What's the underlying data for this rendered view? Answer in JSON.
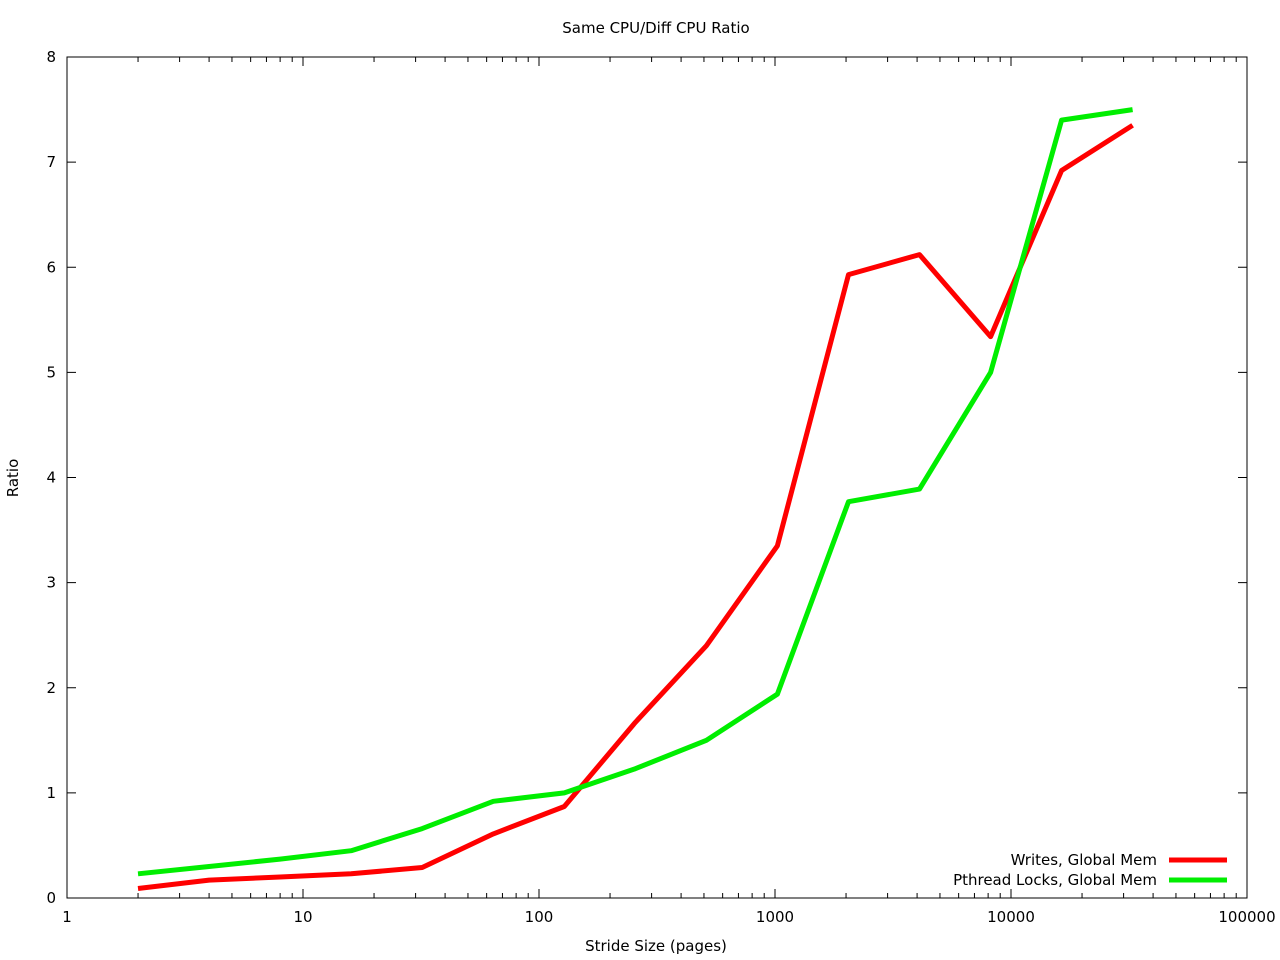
{
  "chart_data": {
    "type": "line",
    "title": "Same CPU/Diff CPU Ratio",
    "xlabel": "Stride Size (pages)",
    "ylabel": "Ratio",
    "xscale": "log",
    "xlim": [
      1,
      100000
    ],
    "ylim": [
      0,
      8
    ],
    "xticks": [
      1,
      10,
      100,
      1000,
      10000,
      100000
    ],
    "xtick_labels": [
      "1",
      "10",
      "100",
      "1000",
      "10000",
      "100000"
    ],
    "yticks": [
      0,
      1,
      2,
      3,
      4,
      5,
      6,
      7,
      8
    ],
    "ytick_labels": [
      "0",
      "1",
      "2",
      "3",
      "4",
      "5",
      "6",
      "7",
      "8"
    ],
    "grid": false,
    "legend_position": "bottom-right",
    "series": [
      {
        "name": "Writes,  Global Mem",
        "color": "#ff0000",
        "x": [
          2,
          4,
          8,
          16,
          32,
          64,
          128,
          256,
          512,
          1024,
          2048,
          4096,
          8192,
          16384,
          32768
        ],
        "y": [
          0.09,
          0.17,
          0.2,
          0.23,
          0.29,
          0.61,
          0.87,
          1.67,
          2.4,
          3.35,
          5.93,
          6.12,
          5.34,
          6.92,
          7.35
        ]
      },
      {
        "name": "Pthread Locks,  Global Mem",
        "color": "#00ee00",
        "x": [
          2,
          4,
          8,
          16,
          32,
          64,
          128,
          256,
          512,
          1024,
          2048,
          4096,
          8192,
          16384,
          32768
        ],
        "y": [
          0.23,
          0.3,
          0.37,
          0.45,
          0.66,
          0.92,
          1.0,
          1.23,
          1.5,
          1.94,
          3.77,
          3.89,
          5.0,
          7.4,
          7.5
        ]
      }
    ]
  }
}
